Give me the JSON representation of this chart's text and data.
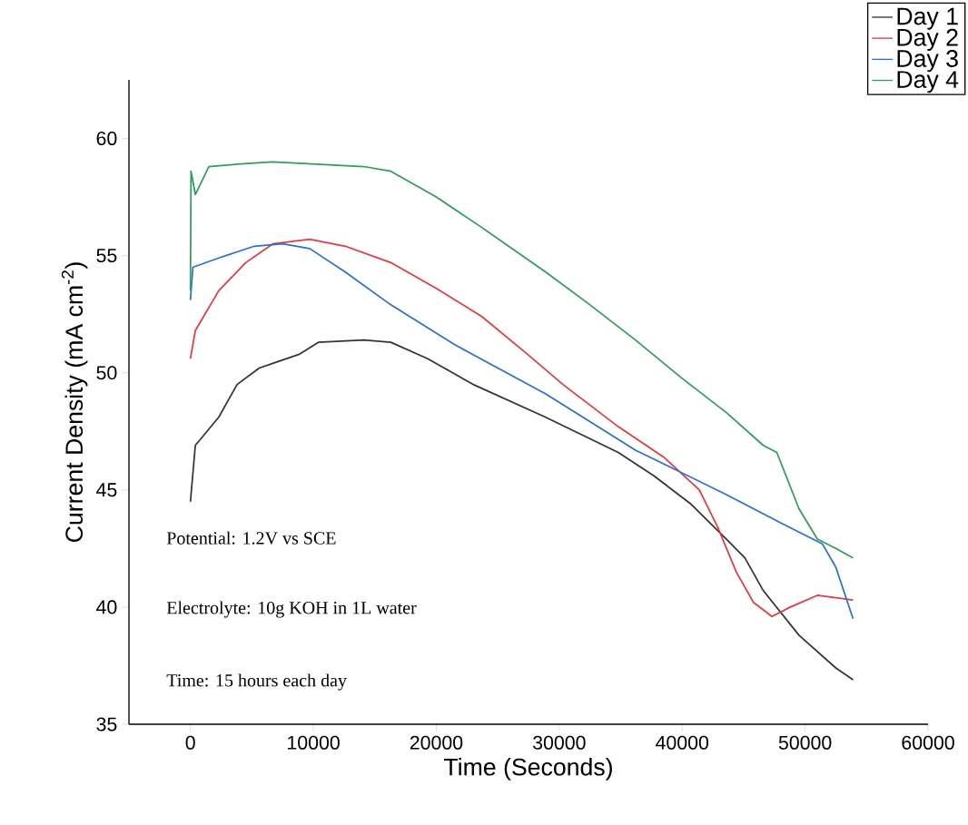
{
  "chart_data": {
    "type": "line",
    "xlabel": "Time (Seconds)",
    "ylabel": "Current Density (mA cm$^{-2}$)",
    "xlim": [
      -5000,
      60000
    ],
    "ylim": [
      35,
      62.5
    ],
    "xticks": [
      0,
      10000,
      20000,
      30000,
      40000,
      50000,
      60000
    ],
    "yticks": [
      35,
      40,
      45,
      50,
      55,
      60
    ],
    "grid": false,
    "legend": "top right",
    "marker": "none",
    "line_style": "solid",
    "annotations": [
      "Potential: 1.2V vs SCE",
      "Electrolyte: 10g KOH in 1L water",
      "Time: 15 hours each day"
    ],
    "series": [
      {
        "name": "Day 1",
        "color": "#333333",
        "x": [
          0,
          400,
          2300,
          3800,
          5600,
          6700,
          8900,
          10400,
          14100,
          16300,
          19300,
          23000,
          28900,
          34800,
          37700,
          40700,
          43600,
          45100,
          46600,
          49500,
          52500,
          53900
        ],
        "values": [
          44.5,
          46.9,
          48.1,
          49.5,
          50.2,
          50.4,
          50.8,
          51.3,
          51.4,
          51.3,
          50.6,
          49.5,
          48.1,
          46.6,
          45.6,
          44.4,
          42.9,
          42.1,
          40.7,
          38.8,
          37.4,
          36.9
        ]
      },
      {
        "name": "Day 2",
        "color": "#e8383d",
        "x": [
          0,
          400,
          2300,
          4500,
          6700,
          9700,
          12600,
          16300,
          20000,
          23700,
          27400,
          30300,
          34800,
          38500,
          41400,
          42900,
          44400,
          45800,
          47300,
          48800,
          51000,
          53900
        ],
        "values": [
          50.6,
          51.8,
          53.5,
          54.7,
          55.5,
          55.7,
          55.4,
          54.7,
          53.6,
          52.4,
          50.8,
          49.5,
          47.7,
          46.4,
          45.0,
          43.4,
          41.5,
          40.2,
          39.6,
          40.0,
          40.5,
          40.3
        ]
      },
      {
        "name": "Day 3",
        "color": "#2b6fd6",
        "x": [
          0,
          200,
          2300,
          5200,
          7500,
          9700,
          12600,
          16300,
          21500,
          28900,
          36200,
          43600,
          48000,
          51400,
          52500,
          53900
        ],
        "values": [
          53.1,
          54.5,
          54.9,
          55.4,
          55.5,
          55.3,
          54.3,
          52.9,
          51.2,
          49.1,
          46.7,
          44.8,
          43.6,
          42.7,
          41.7,
          39.5
        ]
      },
      {
        "name": "Day 4",
        "color": "#2e9e5b",
        "x": [
          0,
          50,
          400,
          1500,
          3800,
          6700,
          10400,
          14100,
          16300,
          20000,
          23700,
          28900,
          32500,
          36200,
          39900,
          43600,
          46600,
          47700,
          49500,
          51000,
          52500,
          53900
        ],
        "values": [
          53.5,
          58.6,
          57.6,
          58.8,
          58.9,
          59.0,
          58.9,
          58.8,
          58.6,
          57.5,
          56.2,
          54.3,
          52.9,
          51.4,
          49.8,
          48.3,
          46.9,
          46.6,
          44.2,
          42.9,
          42.5,
          42.1
        ]
      }
    ]
  }
}
